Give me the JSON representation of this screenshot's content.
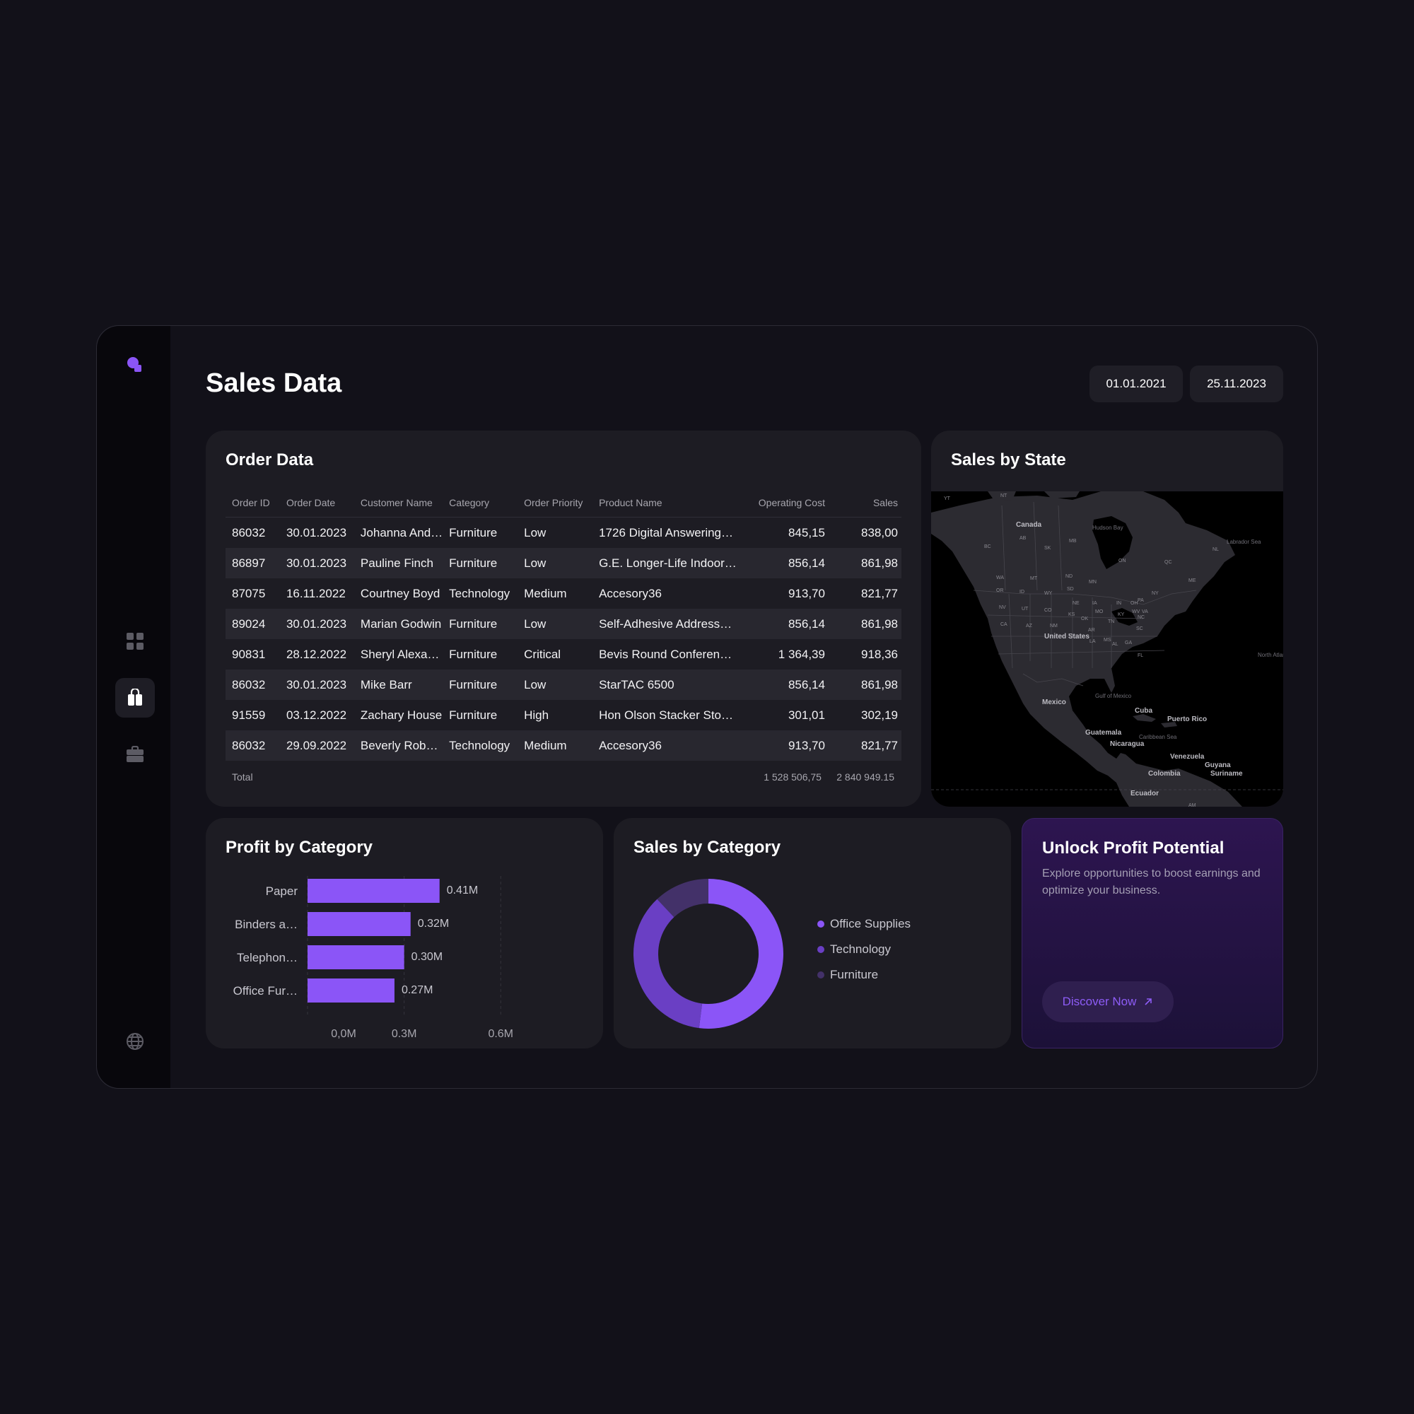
{
  "page": {
    "title": "Sales Data"
  },
  "dates": {
    "start": "01.01.2021",
    "end": "25.11.2023"
  },
  "colors": {
    "accent": "#8b55f7",
    "accent_mid": "#6a3fc4",
    "accent_dark": "#433169",
    "card": "#1d1c23",
    "background": "#121119"
  },
  "sidebar": {
    "icons": [
      "logo-icon",
      "grid-icon",
      "shopping-bag-icon",
      "briefcase-icon",
      "globe-icon"
    ],
    "active": "shopping-bag-icon"
  },
  "order_data": {
    "title": "Order Data",
    "columns": [
      "Order ID",
      "Order Date",
      "Customer Name",
      "Category",
      "Order Priority",
      "Product Name",
      "Operating Cost",
      "Sales"
    ],
    "rows": [
      [
        "86032",
        "30.01.2023",
        "Johanna And…",
        "Furniture",
        "Low",
        "1726 Digital Answering…",
        "845,15",
        "838,00"
      ],
      [
        "86897",
        "30.01.2023",
        "Pauline Finch",
        "Furniture",
        "Low",
        "G.E. Longer-Life Indoor…",
        "856,14",
        "861,98"
      ],
      [
        "87075",
        "16.11.2022",
        "Courtney Boyd",
        "Technology",
        "Medium",
        "Accesory36",
        "913,70",
        "821,77"
      ],
      [
        "89024",
        "30.01.2023",
        "Marian Godwin",
        "Furniture",
        "Low",
        "Self-Adhesive Address…",
        "856,14",
        "861,98"
      ],
      [
        "90831",
        "28.12.2022",
        "Sheryl Alexa…",
        "Furniture",
        "Critical",
        "Bevis Round Conferen…",
        "1 364,39",
        "918,36"
      ],
      [
        "86032",
        "30.01.2023",
        "Mike Barr",
        "Furniture",
        "Low",
        "StarTAC 6500",
        "856,14",
        "861,98"
      ],
      [
        "91559",
        "03.12.2022",
        "Zachary House",
        "Furniture",
        "High",
        "Hon Olson Stacker Sto…",
        "301,01",
        "302,19"
      ],
      [
        "86032",
        "29.09.2022",
        "Beverly Rob…",
        "Technology",
        "Medium",
        "Accesory36",
        "913,70",
        "821,77"
      ]
    ],
    "total": {
      "label": "Total",
      "operating_cost": "1 528 506,75",
      "sales": "2 840 949.15"
    }
  },
  "sales_by_state": {
    "title": "Sales by State",
    "labels": {
      "places": [
        "Canada",
        "United States",
        "Mexico",
        "Cuba",
        "Puerto Rico",
        "Guatemala",
        "Nicaragua",
        "Venezuela",
        "Guyana",
        "Suriname",
        "Colombia",
        "Ecuador"
      ],
      "waters": [
        "Hudson Bay",
        "Labrador Sea",
        "Gulf of Mexico",
        "Caribbean Sea",
        "North Atlantic Ocean"
      ],
      "regions": [
        "YT",
        "NT",
        "AB",
        "SK",
        "MB",
        "BC",
        "ON",
        "QC",
        "NL",
        "WA",
        "MT",
        "ND",
        "MN",
        "OR",
        "ID",
        "WY",
        "SD",
        "NV",
        "UT",
        "CO",
        "NE",
        "IA",
        "CA",
        "AZ",
        "NM",
        "OK",
        "KS",
        "MO",
        "TX",
        "AR",
        "TN",
        "LA",
        "MS",
        "AL",
        "GA",
        "FL",
        "SC",
        "NC",
        "KY",
        "IN",
        "OH",
        "WV",
        "VA",
        "PA",
        "NY",
        "ME",
        "AM"
      ]
    }
  },
  "profit_by_category": {
    "title": "Profit by Category",
    "chart_data": {
      "type": "bar",
      "orientation": "horizontal",
      "categories": [
        "Paper",
        "Binders a…",
        "Telephon…",
        "Office Fur…"
      ],
      "values": [
        0.41,
        0.32,
        0.3,
        0.27
      ],
      "value_labels": [
        "0.41M",
        "0.32M",
        "0.30M",
        "0.27M"
      ],
      "ticks": [
        "0,0M",
        "0.3M",
        "0.6M"
      ],
      "xlim": [
        0,
        0.6
      ],
      "color": "#8b55f7"
    }
  },
  "sales_by_category": {
    "title": "Sales by Category",
    "chart_data": {
      "type": "pie",
      "donut": true,
      "categories": [
        "Office Supplies",
        "Technology",
        "Furniture"
      ],
      "values": [
        0.52,
        0.36,
        0.12
      ],
      "colors": [
        "#8b55f7",
        "#6a3fc4",
        "#433169"
      ],
      "legend": "right"
    }
  },
  "promo": {
    "title": "Unlock Profit Potential",
    "text": "Explore opportunities to boost earnings and optimize your business.",
    "button_label": "Discover Now",
    "button_icon": "arrow-up-right-icon"
  }
}
